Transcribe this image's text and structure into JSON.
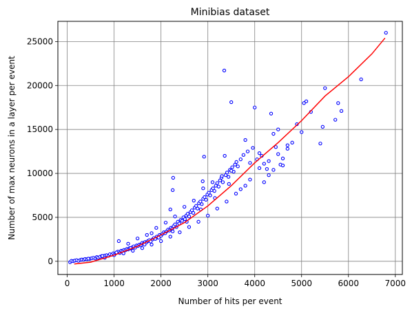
{
  "chart_data": {
    "type": "scatter",
    "title": "Minibias dataset",
    "xlabel": "Number of hits per event",
    "ylabel": "Number of max neurons in a layer per event",
    "xlim": [
      -200,
      7150
    ],
    "ylim": [
      -1500,
      27300
    ],
    "xticks": [
      0,
      1000,
      2000,
      3000,
      4000,
      5000,
      6000,
      7000
    ],
    "yticks": [
      0,
      5000,
      10000,
      15000,
      20000,
      25000
    ],
    "grid": true,
    "marker_edge_color": "#0000ff",
    "fit_color": "#ff0000",
    "series": [
      {
        "kind": "scatter",
        "points": [
          [
            60,
            -100
          ],
          [
            90,
            50
          ],
          [
            130,
            20
          ],
          [
            160,
            80
          ],
          [
            200,
            120
          ],
          [
            240,
            60
          ],
          [
            280,
            150
          ],
          [
            310,
            200
          ],
          [
            350,
            180
          ],
          [
            380,
            260
          ],
          [
            420,
            230
          ],
          [
            450,
            300
          ],
          [
            480,
            280
          ],
          [
            520,
            350
          ],
          [
            560,
            400
          ],
          [
            600,
            330
          ],
          [
            630,
            480
          ],
          [
            660,
            420
          ],
          [
            700,
            520
          ],
          [
            740,
            600
          ],
          [
            770,
            480
          ],
          [
            800,
            650
          ],
          [
            840,
            700
          ],
          [
            880,
            620
          ],
          [
            910,
            800
          ],
          [
            950,
            750
          ],
          [
            980,
            900
          ],
          [
            1020,
            850
          ],
          [
            1050,
            1000
          ],
          [
            1080,
            1100
          ],
          [
            1100,
            2300
          ],
          [
            1120,
            950
          ],
          [
            1150,
            1200
          ],
          [
            1180,
            1150
          ],
          [
            1210,
            1300
          ],
          [
            1240,
            1250
          ],
          [
            1270,
            1400
          ],
          [
            1300,
            1350
          ],
          [
            1330,
            1500
          ],
          [
            1360,
            1450
          ],
          [
            1390,
            1600
          ],
          [
            1420,
            1700
          ],
          [
            1450,
            1550
          ],
          [
            1480,
            1800
          ],
          [
            1510,
            1750
          ],
          [
            1540,
            1900
          ],
          [
            1570,
            1850
          ],
          [
            1600,
            2100
          ],
          [
            1630,
            2000
          ],
          [
            1660,
            2200
          ],
          [
            1690,
            2150
          ],
          [
            1720,
            2300
          ],
          [
            1750,
            2400
          ],
          [
            1780,
            2250
          ],
          [
            1800,
            3200
          ],
          [
            1820,
            2500
          ],
          [
            1850,
            2650
          ],
          [
            1880,
            2550
          ],
          [
            1910,
            2800
          ],
          [
            1940,
            2700
          ],
          [
            1970,
            3000
          ],
          [
            2000,
            2900
          ],
          [
            2030,
            3100
          ],
          [
            2060,
            3300
          ],
          [
            2090,
            3200
          ],
          [
            2120,
            3400
          ],
          [
            2150,
            3600
          ],
          [
            2180,
            3500
          ],
          [
            2200,
            5900
          ],
          [
            2210,
            3800
          ],
          [
            2240,
            3700
          ],
          [
            2250,
            8100
          ],
          [
            2260,
            9500
          ],
          [
            2270,
            4000
          ],
          [
            2300,
            4200
          ],
          [
            2330,
            3900
          ],
          [
            2360,
            4500
          ],
          [
            2390,
            4300
          ],
          [
            2420,
            4700
          ],
          [
            2450,
            4600
          ],
          [
            2480,
            5000
          ],
          [
            2510,
            4800
          ],
          [
            2540,
            5200
          ],
          [
            2570,
            5400
          ],
          [
            2600,
            5100
          ],
          [
            2630,
            5600
          ],
          [
            2660,
            5800
          ],
          [
            2690,
            5500
          ],
          [
            2720,
            6100
          ],
          [
            2750,
            6300
          ],
          [
            2780,
            6000
          ],
          [
            2810,
            6600
          ],
          [
            2840,
            6800
          ],
          [
            2870,
            6500
          ],
          [
            2890,
            9100
          ],
          [
            2900,
            7100
          ],
          [
            2920,
            11900
          ],
          [
            2930,
            7300
          ],
          [
            2960,
            7000
          ],
          [
            2990,
            7600
          ],
          [
            3020,
            7800
          ],
          [
            3050,
            7500
          ],
          [
            3080,
            8100
          ],
          [
            3110,
            8300
          ],
          [
            3140,
            8000
          ],
          [
            3170,
            8600
          ],
          [
            3200,
            8900
          ],
          [
            3230,
            8500
          ],
          [
            3260,
            9200
          ],
          [
            3290,
            9500
          ],
          [
            3320,
            9000
          ],
          [
            3350,
            21700
          ],
          [
            3360,
            12000
          ],
          [
            3380,
            9800
          ],
          [
            3410,
            10100
          ],
          [
            3440,
            9600
          ],
          [
            3470,
            10400
          ],
          [
            3500,
            18100
          ],
          [
            3520,
            10700
          ],
          [
            3550,
            10200
          ],
          [
            3580,
            11000
          ],
          [
            3610,
            11300
          ],
          [
            3640,
            10800
          ],
          [
            3700,
            11600
          ],
          [
            3760,
            12100
          ],
          [
            3800,
            13800
          ],
          [
            3850,
            12500
          ],
          [
            3900,
            11200
          ],
          [
            3960,
            12900
          ],
          [
            4000,
            17500
          ],
          [
            4050,
            11600
          ],
          [
            4100,
            12300
          ],
          [
            4150,
            12000
          ],
          [
            4200,
            11100
          ],
          [
            4260,
            10500
          ],
          [
            4300,
            9800
          ],
          [
            4350,
            16800
          ],
          [
            4400,
            14500
          ],
          [
            4450,
            13000
          ],
          [
            4500,
            15000
          ],
          [
            4550,
            11000
          ],
          [
            4600,
            11700
          ],
          [
            4700,
            12800
          ],
          [
            4800,
            13500
          ],
          [
            4900,
            15600
          ],
          [
            5000,
            14700
          ],
          [
            5050,
            18000
          ],
          [
            5100,
            18200
          ],
          [
            5200,
            17000
          ],
          [
            5400,
            13400
          ],
          [
            5450,
            15300
          ],
          [
            5500,
            19700
          ],
          [
            5720,
            16100
          ],
          [
            5780,
            18000
          ],
          [
            5850,
            17100
          ],
          [
            6270,
            20700
          ],
          [
            6800,
            26000
          ],
          [
            800,
            400
          ],
          [
            1000,
            700
          ],
          [
            1200,
            900
          ],
          [
            1400,
            1200
          ],
          [
            1600,
            1500
          ],
          [
            1800,
            1900
          ],
          [
            2000,
            2300
          ],
          [
            2200,
            2800
          ],
          [
            2400,
            3300
          ],
          [
            2600,
            3900
          ],
          [
            2800,
            4500
          ],
          [
            3000,
            5200
          ],
          [
            3200,
            6000
          ],
          [
            3400,
            6800
          ],
          [
            3600,
            7700
          ],
          [
            3800,
            8600
          ],
          [
            1300,
            2000
          ],
          [
            1500,
            2600
          ],
          [
            1700,
            3000
          ],
          [
            1900,
            3800
          ],
          [
            2100,
            4400
          ],
          [
            2300,
            5100
          ],
          [
            2500,
            6200
          ],
          [
            2700,
            6900
          ],
          [
            2900,
            8300
          ],
          [
            3100,
            9000
          ],
          [
            3300,
            9700
          ],
          [
            3500,
            10300
          ],
          [
            3700,
            8200
          ],
          [
            3900,
            9300
          ],
          [
            4100,
            10600
          ],
          [
            4300,
            11400
          ],
          [
            4500,
            12200
          ],
          [
            4700,
            13200
          ],
          [
            4400,
            10400
          ],
          [
            4600,
            10900
          ],
          [
            4200,
            9000
          ],
          [
            3450,
            8800
          ],
          [
            3150,
            7200
          ],
          [
            2850,
            5900
          ],
          [
            2550,
            4500
          ],
          [
            2250,
            3400
          ],
          [
            1950,
            2700
          ],
          [
            1650,
            1900
          ],
          [
            1350,
            1500
          ],
          [
            1050,
            1000
          ],
          [
            750,
            600
          ],
          [
            450,
            300
          ]
        ]
      },
      {
        "kind": "fit-line",
        "points": [
          [
            150,
            -300
          ],
          [
            500,
            -100
          ],
          [
            1000,
            700
          ],
          [
            1500,
            1700
          ],
          [
            2000,
            3000
          ],
          [
            2500,
            4400
          ],
          [
            3000,
            6300
          ],
          [
            3500,
            8600
          ],
          [
            4000,
            11200
          ],
          [
            4500,
            13500
          ],
          [
            5000,
            16000
          ],
          [
            5500,
            18800
          ],
          [
            6000,
            21000
          ],
          [
            6500,
            23600
          ],
          [
            6780,
            25400
          ]
        ]
      }
    ]
  }
}
